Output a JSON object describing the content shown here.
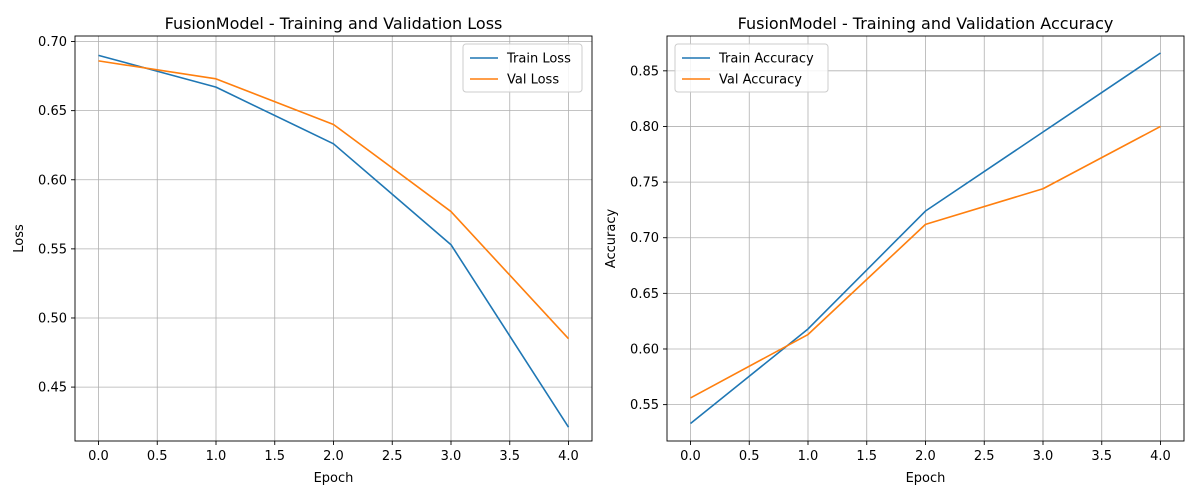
{
  "chart_data": [
    {
      "type": "line",
      "title": "FusionModel - Training and Validation Loss",
      "xlabel": "Epoch",
      "ylabel": "Loss",
      "xlim": [
        -0.2,
        4.2
      ],
      "ylim": [
        0.411,
        0.704
      ],
      "xticks": [
        0.0,
        0.5,
        1.0,
        1.5,
        2.0,
        2.5,
        3.0,
        3.5,
        4.0
      ],
      "xtick_labels": [
        "0.0",
        "0.5",
        "1.0",
        "1.5",
        "2.0",
        "2.5",
        "3.0",
        "3.5",
        "4.0"
      ],
      "yticks": [
        0.45,
        0.5,
        0.55,
        0.6,
        0.65,
        0.7
      ],
      "ytick_labels": [
        "0.45",
        "0.50",
        "0.55",
        "0.60",
        "0.65",
        "0.70"
      ],
      "grid": true,
      "legend_position": "upper right",
      "x": [
        0,
        1,
        2,
        3,
        4
      ],
      "series": [
        {
          "name": "Train Loss",
          "color": "#1f77b4",
          "values": [
            0.69,
            0.667,
            0.626,
            0.553,
            0.421
          ]
        },
        {
          "name": "Val Loss",
          "color": "#ff7f0e",
          "values": [
            0.686,
            0.673,
            0.64,
            0.577,
            0.485
          ]
        }
      ]
    },
    {
      "type": "line",
      "title": "FusionModel - Training and Validation Accuracy",
      "xlabel": "Epoch",
      "ylabel": "Accuracy",
      "xlim": [
        -0.2,
        4.2
      ],
      "ylim": [
        0.5173,
        0.8813
      ],
      "xticks": [
        0.0,
        0.5,
        1.0,
        1.5,
        2.0,
        2.5,
        3.0,
        3.5,
        4.0
      ],
      "xtick_labels": [
        "0.0",
        "0.5",
        "1.0",
        "1.5",
        "2.0",
        "2.5",
        "3.0",
        "3.5",
        "4.0"
      ],
      "yticks": [
        0.55,
        0.6,
        0.65,
        0.7,
        0.75,
        0.8,
        0.85
      ],
      "ytick_labels": [
        "0.55",
        "0.60",
        "0.65",
        "0.70",
        "0.75",
        "0.80",
        "0.85"
      ],
      "grid": true,
      "legend_position": "upper left",
      "x": [
        0,
        1,
        2,
        3,
        4
      ],
      "series": [
        {
          "name": "Train Accuracy",
          "color": "#1f77b4",
          "values": [
            0.533,
            0.618,
            0.724,
            0.795,
            0.866
          ]
        },
        {
          "name": "Val Accuracy",
          "color": "#ff7f0e",
          "values": [
            0.556,
            0.613,
            0.712,
            0.744,
            0.8
          ]
        }
      ]
    }
  ]
}
